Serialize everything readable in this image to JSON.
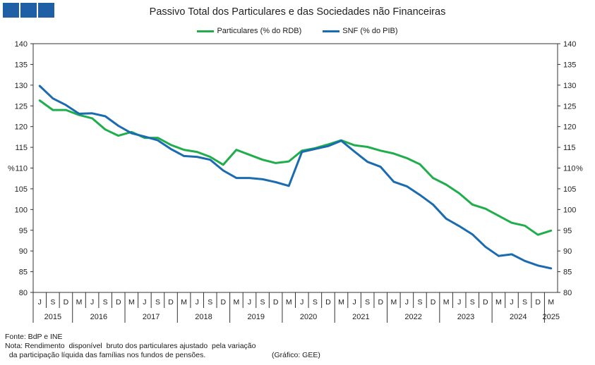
{
  "header": {
    "title": "Passivo Total dos Particulares e das Sociedades não Financeiras"
  },
  "colors": {
    "brand": "#1f5fa6",
    "particulares": "#1fae4b",
    "snf": "#1b6bb0",
    "axis": "#333333"
  },
  "footer": {
    "source": "Fonte: BdP e INE",
    "note_line1": "Nota: Rendimento  disponível  bruto dos particulares ajustado  pela variação",
    "note_line2": "  da participação líquida das famílias nos fundos de pensões.",
    "credit": "(Gráfico: GEE)"
  },
  "chart_data": {
    "type": "line",
    "title": "Passivo Total dos Particulares e das Sociedades não Financeiras",
    "ylabel_left": "%",
    "ylabel_right": "%",
    "ylim": [
      80,
      140
    ],
    "yticks": [
      80,
      85,
      90,
      95,
      100,
      105,
      110,
      115,
      120,
      125,
      130,
      135,
      140
    ],
    "legend_position": "top-center",
    "categories": [
      "J",
      "S",
      "D",
      "M",
      "J",
      "S",
      "D",
      "M",
      "J",
      "S",
      "D",
      "M",
      "J",
      "S",
      "D",
      "M",
      "J",
      "S",
      "D",
      "M",
      "J",
      "S",
      "D",
      "M",
      "J",
      "S",
      "D",
      "M",
      "J",
      "S",
      "D",
      "M",
      "J",
      "S",
      "D",
      "M",
      "J",
      "S",
      "D",
      "M"
    ],
    "years": [
      {
        "label": "2015",
        "span": 3
      },
      {
        "label": "2016",
        "span": 4
      },
      {
        "label": "2017",
        "span": 4
      },
      {
        "label": "2018",
        "span": 4
      },
      {
        "label": "2019",
        "span": 4
      },
      {
        "label": "2020",
        "span": 4
      },
      {
        "label": "2021",
        "span": 4
      },
      {
        "label": "2022",
        "span": 4
      },
      {
        "label": "2023",
        "span": 4
      },
      {
        "label": "2024",
        "span": 4
      },
      {
        "label": "2025",
        "span": 1
      }
    ],
    "series": [
      {
        "name": "Particulares (% do RDB)",
        "color": "#1fae4b",
        "values": [
          126.3,
          124.0,
          124.0,
          122.8,
          122.0,
          119.3,
          117.8,
          118.7,
          117.3,
          117.3,
          115.6,
          114.4,
          113.9,
          112.7,
          110.8,
          114.4,
          113.2,
          112.0,
          111.2,
          111.6,
          114.2,
          114.8,
          115.7,
          116.7,
          115.5,
          115.1,
          114.2,
          113.5,
          112.4,
          110.9,
          107.6,
          106.0,
          103.9,
          101.2,
          100.2,
          98.5,
          96.8,
          96.1,
          93.9,
          94.9
        ]
      },
      {
        "name": "SNF (% do PIB)",
        "color": "#1b6bb0",
        "values": [
          129.8,
          126.8,
          125.2,
          123.1,
          123.2,
          122.5,
          120.2,
          118.4,
          117.6,
          116.7,
          114.6,
          112.9,
          112.7,
          112.0,
          109.4,
          107.6,
          107.6,
          107.3,
          106.6,
          105.7,
          113.9,
          114.6,
          115.3,
          116.6,
          114.0,
          111.5,
          110.3,
          106.7,
          105.6,
          103.5,
          101.2,
          97.8,
          96.0,
          94.0,
          91.0,
          88.8,
          89.2,
          87.6,
          86.5,
          85.8
        ]
      }
    ]
  }
}
